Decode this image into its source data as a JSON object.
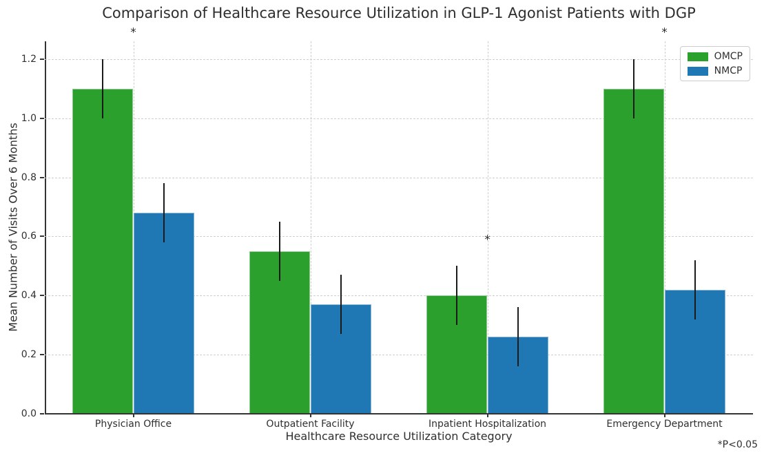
{
  "title": "Comparison of Healthcare Resource Utilization in GLP-1 Agonist Patients with DGP",
  "chart_data": {
    "type": "bar",
    "categories": [
      "Physician Office",
      "Outpatient Facility",
      "Inpatient Hospitalization",
      "Emergency Department"
    ],
    "series": [
      {
        "name": "OMCP",
        "color": "#2ca02c",
        "values": [
          1.1,
          0.55,
          0.4,
          1.1
        ],
        "errors": [
          0.1,
          0.1,
          0.1,
          0.1
        ]
      },
      {
        "name": "NMCP",
        "color": "#1f77b4",
        "values": [
          0.68,
          0.37,
          0.26,
          0.42
        ],
        "errors": [
          0.1,
          0.1,
          0.1,
          0.1
        ]
      }
    ],
    "title": "Comparison of Healthcare Resource Utilization in GLP-1 Agonist Patients with DGP",
    "xlabel": "Healthcare Resource Utilization Category",
    "ylabel": "Mean Number of Visits Over 6 Months",
    "ylim": [
      0,
      1.26
    ],
    "yticks": [
      0.0,
      0.2,
      0.4,
      0.6,
      0.8,
      1.0,
      1.2
    ],
    "ytick_labels": [
      "0.0",
      "0.2",
      "0.4",
      "0.6",
      "0.8",
      "1.0",
      "1.2"
    ],
    "grid": true,
    "grid_style": "dashed",
    "legend_position": "upper right",
    "bar_width_frac": 0.345,
    "error_bar_color": "#1a1a1a",
    "significance_markers": [
      {
        "category_index": 0,
        "y_value": 1.285,
        "symbol": "*"
      },
      {
        "category_index": 2,
        "y_value": 0.585,
        "symbol": "*"
      },
      {
        "category_index": 3,
        "y_value": 1.285,
        "symbol": "*"
      }
    ],
    "annotation": "*P<0.05"
  },
  "colors": {
    "omcp_green": "#2ca02c",
    "nmcp_blue": "#1f77b4",
    "grid": "#cfcfcf",
    "spine": "#333333",
    "text": "#2f2f2f"
  }
}
